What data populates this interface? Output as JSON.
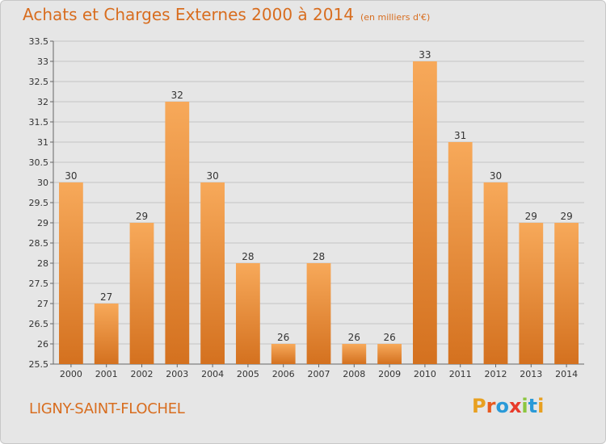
{
  "header": {
    "title": "Achats et Charges Externes 2000 à 2014",
    "unit": "(en milliers d'€)"
  },
  "footer": {
    "commune": "LIGNY-SAINT-FLOCHEL",
    "logo_letters": [
      "P",
      "r",
      "o",
      "x",
      "i",
      "t",
      "i"
    ],
    "logo_colors": [
      "#e8a020",
      "#e85a20",
      "#2a9ad8",
      "#e83a2a",
      "#8cc63f",
      "#2a9ad8",
      "#e8a020"
    ]
  },
  "colors": {
    "accent": "#d86d1f",
    "bar_light": "#f7a95a",
    "bar_dark": "#d4711f",
    "background": "#e6e6e6"
  },
  "chart_data": {
    "type": "bar",
    "categories": [
      "2000",
      "2001",
      "2002",
      "2003",
      "2004",
      "2005",
      "2006",
      "2007",
      "2008",
      "2009",
      "2010",
      "2011",
      "2012",
      "2013",
      "2014"
    ],
    "values": [
      30,
      27,
      29,
      32,
      30,
      28,
      26,
      28,
      26,
      26,
      33,
      31,
      30,
      29,
      29
    ],
    "data_labels": [
      "30",
      "27",
      "29",
      "32",
      "30",
      "28",
      "26",
      "28",
      "26",
      "26",
      "33",
      "31",
      "30",
      "29",
      "29"
    ],
    "yticks": [
      "25.5",
      "26",
      "26.5",
      "27",
      "27.5",
      "28",
      "28.5",
      "29",
      "29.5",
      "30",
      "30.5",
      "31",
      "31.5",
      "32",
      "32.5",
      "33",
      "33.5"
    ],
    "ylim": [
      25.5,
      33.5
    ],
    "grid": true
  }
}
